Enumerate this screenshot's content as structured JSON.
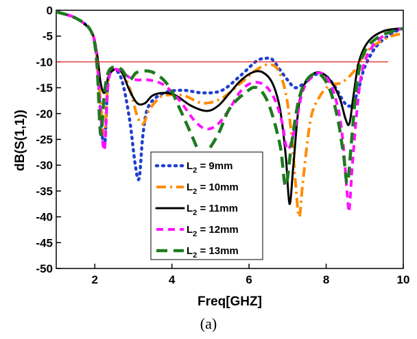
{
  "chart_data": {
    "type": "line",
    "title": "",
    "xlabel": "Freq[GHZ]",
    "ylabel": "dB(S(1,1))",
    "caption": "(a)",
    "xlim": [
      1,
      10
    ],
    "ylim": [
      -50,
      0
    ],
    "x_ticks": [
      2,
      4,
      6,
      8,
      10
    ],
    "y_ticks": [
      0,
      -5,
      -10,
      -15,
      -20,
      -25,
      -30,
      -35,
      -40,
      -45,
      -50
    ],
    "grid": false,
    "legend_position": "lower-center",
    "reference_line": {
      "y": -10,
      "color": "#e02020"
    },
    "series": [
      {
        "legend_main": "L",
        "legend_sub": "2",
        "legend_rest": " = 9mm",
        "color": "#1f3fd0",
        "style": "dot",
        "x": [
          1.0,
          1.5,
          1.9,
          2.05,
          2.15,
          2.25,
          2.35,
          2.5,
          2.7,
          2.9,
          3.05,
          3.15,
          3.25,
          3.4,
          3.8,
          4.3,
          4.8,
          5.3,
          5.8,
          6.2,
          6.45,
          6.6,
          6.8,
          7.0,
          7.2,
          7.45,
          7.7,
          7.95,
          8.2,
          8.4,
          8.55,
          8.7,
          8.85,
          9.0,
          9.3,
          9.7,
          10.0
        ],
        "y": [
          -0.3,
          -1.5,
          -4.0,
          -9.0,
          -20.0,
          -26.5,
          -13.0,
          -11.5,
          -13.5,
          -21.0,
          -30.0,
          -32.5,
          -24.0,
          -18.5,
          -16.0,
          -15.5,
          -16.0,
          -15.5,
          -12.5,
          -9.8,
          -9.3,
          -9.5,
          -11.5,
          -13.5,
          -15.0,
          -14.0,
          -12.5,
          -12.5,
          -14.5,
          -17.0,
          -18.5,
          -18.0,
          -15.0,
          -11.0,
          -7.0,
          -4.5,
          -3.5
        ]
      },
      {
        "legend_main": "L",
        "legend_sub": "2",
        "legend_rest": " = 10mm",
        "color": "#ff8c00",
        "style": "dashdot",
        "x": [
          1.0,
          1.5,
          1.9,
          2.05,
          2.15,
          2.25,
          2.35,
          2.5,
          2.7,
          2.9,
          3.1,
          3.25,
          3.4,
          3.6,
          3.8,
          4.3,
          4.8,
          5.3,
          5.8,
          6.2,
          6.5,
          6.75,
          6.95,
          7.1,
          7.2,
          7.3,
          7.4,
          7.6,
          7.85,
          8.1,
          8.4,
          8.7,
          9.0,
          9.3,
          9.7,
          10.0
        ],
        "y": [
          -0.3,
          -1.5,
          -4.0,
          -8.5,
          -18.0,
          -24.0,
          -13.5,
          -11.5,
          -12.0,
          -15.0,
          -20.5,
          -22.0,
          -19.5,
          -17.5,
          -16.5,
          -16.5,
          -18.0,
          -17.0,
          -14.0,
          -11.5,
          -10.5,
          -11.5,
          -16.0,
          -24.0,
          -33.0,
          -40.0,
          -33.0,
          -21.0,
          -16.5,
          -14.5,
          -14.0,
          -12.0,
          -8.5,
          -6.5,
          -5.0,
          -4.5
        ]
      },
      {
        "legend_main": "L",
        "legend_sub": "2",
        "legend_rest": " = 11mm",
        "color": "#000000",
        "style": "solid",
        "x": [
          1.0,
          1.5,
          1.9,
          2.05,
          2.15,
          2.25,
          2.35,
          2.5,
          2.7,
          2.9,
          3.1,
          3.3,
          3.5,
          3.8,
          4.1,
          4.5,
          4.9,
          5.2,
          5.5,
          5.8,
          6.1,
          6.35,
          6.6,
          6.8,
          6.95,
          7.05,
          7.15,
          7.3,
          7.5,
          7.8,
          8.1,
          8.35,
          8.5,
          8.6,
          8.7,
          8.85,
          9.1,
          9.5,
          10.0
        ],
        "y": [
          -0.3,
          -1.5,
          -4.0,
          -8.0,
          -14.0,
          -16.0,
          -13.0,
          -11.5,
          -12.0,
          -15.5,
          -18.0,
          -18.0,
          -16.5,
          -16.0,
          -16.5,
          -18.5,
          -19.5,
          -18.5,
          -16.0,
          -13.5,
          -12.0,
          -12.0,
          -14.0,
          -19.0,
          -28.0,
          -37.5,
          -30.0,
          -18.0,
          -13.5,
          -12.0,
          -13.5,
          -17.0,
          -21.0,
          -22.0,
          -17.0,
          -10.0,
          -6.0,
          -4.0,
          -3.5
        ]
      },
      {
        "legend_main": "L",
        "legend_sub": "2",
        "legend_rest": " = 12mm",
        "color": "#ff10ff",
        "style": "dash",
        "x": [
          1.0,
          1.5,
          1.9,
          2.05,
          2.15,
          2.25,
          2.35,
          2.5,
          2.7,
          2.9,
          3.1,
          3.4,
          3.8,
          4.2,
          4.6,
          4.9,
          5.2,
          5.5,
          5.8,
          6.1,
          6.4,
          6.65,
          6.85,
          7.0,
          7.2,
          7.4,
          7.7,
          7.95,
          8.2,
          8.4,
          8.55,
          8.6,
          8.7,
          8.9,
          9.2,
          9.6,
          10.0
        ],
        "y": [
          -0.3,
          -1.5,
          -4.0,
          -9.0,
          -20.0,
          -27.0,
          -14.0,
          -11.5,
          -12.0,
          -13.0,
          -13.5,
          -13.5,
          -14.5,
          -17.5,
          -21.5,
          -23.0,
          -22.0,
          -19.0,
          -15.5,
          -14.0,
          -14.5,
          -17.0,
          -21.5,
          -27.0,
          -22.5,
          -15.5,
          -12.5,
          -12.5,
          -16.0,
          -23.0,
          -36.0,
          -38.5,
          -28.0,
          -13.0,
          -7.0,
          -4.5,
          -3.5
        ]
      },
      {
        "legend_main": "L",
        "legend_sub": "2",
        "legend_rest": " = 13mm",
        "color": "#1e7a1e",
        "style": "longdash",
        "x": [
          1.0,
          1.5,
          1.9,
          2.05,
          2.15,
          2.25,
          2.35,
          2.5,
          2.7,
          2.9,
          3.1,
          3.5,
          3.9,
          4.2,
          4.5,
          4.75,
          4.9,
          5.2,
          5.5,
          5.9,
          6.2,
          6.5,
          6.8,
          6.95,
          7.1,
          7.3,
          7.55,
          7.85,
          8.1,
          8.3,
          8.45,
          8.55,
          8.65,
          8.8,
          9.0,
          9.4,
          10.0
        ],
        "y": [
          -0.3,
          -1.5,
          -4.0,
          -10.0,
          -24.0,
          -16.0,
          -12.0,
          -11.0,
          -11.5,
          -13.5,
          -12.0,
          -12.0,
          -14.5,
          -19.0,
          -24.0,
          -28.0,
          -27.5,
          -24.0,
          -19.0,
          -16.0,
          -15.0,
          -18.0,
          -26.0,
          -34.0,
          -26.0,
          -17.0,
          -13.0,
          -12.5,
          -15.5,
          -21.0,
          -28.0,
          -33.5,
          -26.0,
          -14.0,
          -8.0,
          -5.0,
          -3.5
        ]
      }
    ]
  }
}
